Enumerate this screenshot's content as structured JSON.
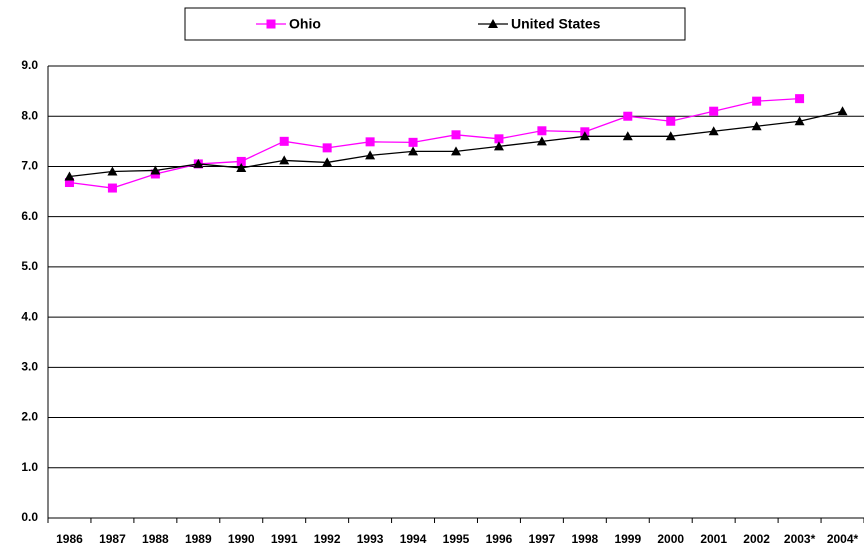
{
  "chart_data": {
    "type": "line",
    "categories": [
      "1986",
      "1987",
      "1988",
      "1989",
      "1990",
      "1991",
      "1992",
      "1993",
      "1994",
      "1995",
      "1996",
      "1997",
      "1998",
      "1999",
      "2000",
      "2001",
      "2002",
      "2003*",
      "2004*"
    ],
    "series": [
      {
        "name": "Ohio",
        "color": "#ff00ff",
        "marker": "square",
        "values": [
          6.68,
          6.57,
          6.85,
          7.05,
          7.1,
          7.5,
          7.37,
          7.49,
          7.48,
          7.63,
          7.55,
          7.71,
          7.69,
          8.0,
          7.9,
          8.1,
          8.3,
          8.35,
          null
        ]
      },
      {
        "name": "United States",
        "color": "#000000",
        "marker": "triangle",
        "values": [
          6.8,
          6.9,
          6.92,
          7.05,
          6.97,
          7.12,
          7.08,
          7.22,
          7.3,
          7.3,
          7.4,
          7.5,
          7.6,
          7.6,
          7.6,
          7.7,
          7.8,
          7.9,
          8.1
        ]
      }
    ],
    "ylim": [
      0,
      9
    ],
    "yticks": [
      {
        "value": 0,
        "label": "0.0"
      },
      {
        "value": 1,
        "label": "1.0"
      },
      {
        "value": 2,
        "label": "2.0"
      },
      {
        "value": 3,
        "label": "3.0"
      },
      {
        "value": 4,
        "label": "4.0"
      },
      {
        "value": 5,
        "label": "5.0"
      },
      {
        "value": 6,
        "label": "6.0"
      },
      {
        "value": 7,
        "label": "7.0"
      },
      {
        "value": 8,
        "label": "8.0"
      },
      {
        "value": 9,
        "label": "9.0"
      }
    ],
    "grid": true,
    "legend": "top"
  }
}
